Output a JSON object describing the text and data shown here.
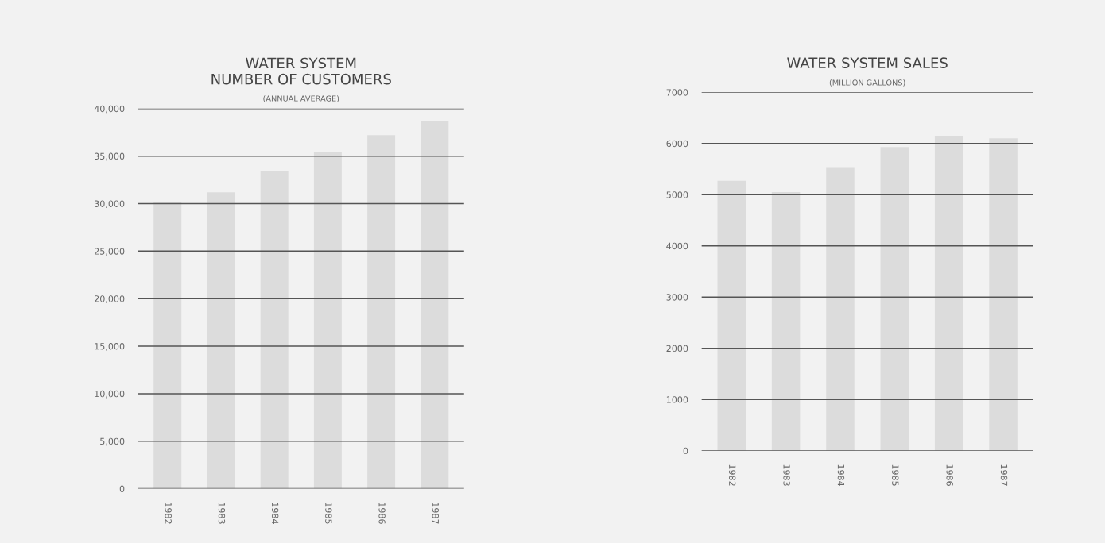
{
  "chart_data": [
    {
      "type": "bar",
      "title": "WATER SYSTEM\nNUMBER OF CUSTOMERS",
      "subtitle": "(ANNUAL AVERAGE)",
      "categories": [
        "1982",
        "1983",
        "1984",
        "1985",
        "1986",
        "1987"
      ],
      "values": [
        30200,
        31200,
        33400,
        35400,
        37200,
        38700
      ],
      "color": "#dcdcdc",
      "ylim": [
        0,
        40000
      ],
      "yticks": [
        {
          "value": 0,
          "label": "0"
        },
        {
          "value": 5000,
          "label": "5,000"
        },
        {
          "value": 10000,
          "label": "10,000"
        },
        {
          "value": 15000,
          "label": "15,000"
        },
        {
          "value": 20000,
          "label": "20,000"
        },
        {
          "value": 25000,
          "label": "25,000"
        },
        {
          "value": 30000,
          "label": "30,000"
        },
        {
          "value": 35000,
          "label": "35,000"
        },
        {
          "value": 40000,
          "label": "40,000"
        }
      ],
      "grid": "y"
    },
    {
      "type": "bar",
      "title": "WATER SYSTEM SALES",
      "subtitle": "(MILLION GALLONS)",
      "categories": [
        "1982",
        "1983",
        "1984",
        "1985",
        "1986",
        "1987"
      ],
      "values": [
        5270,
        5050,
        5540,
        5930,
        6150,
        6100
      ],
      "color": "#dcdcdc",
      "ylim": [
        0,
        7000
      ],
      "yticks": [
        0,
        1000,
        2000,
        3000,
        4000,
        5000,
        6000,
        7000
      ],
      "grid": "y"
    }
  ]
}
